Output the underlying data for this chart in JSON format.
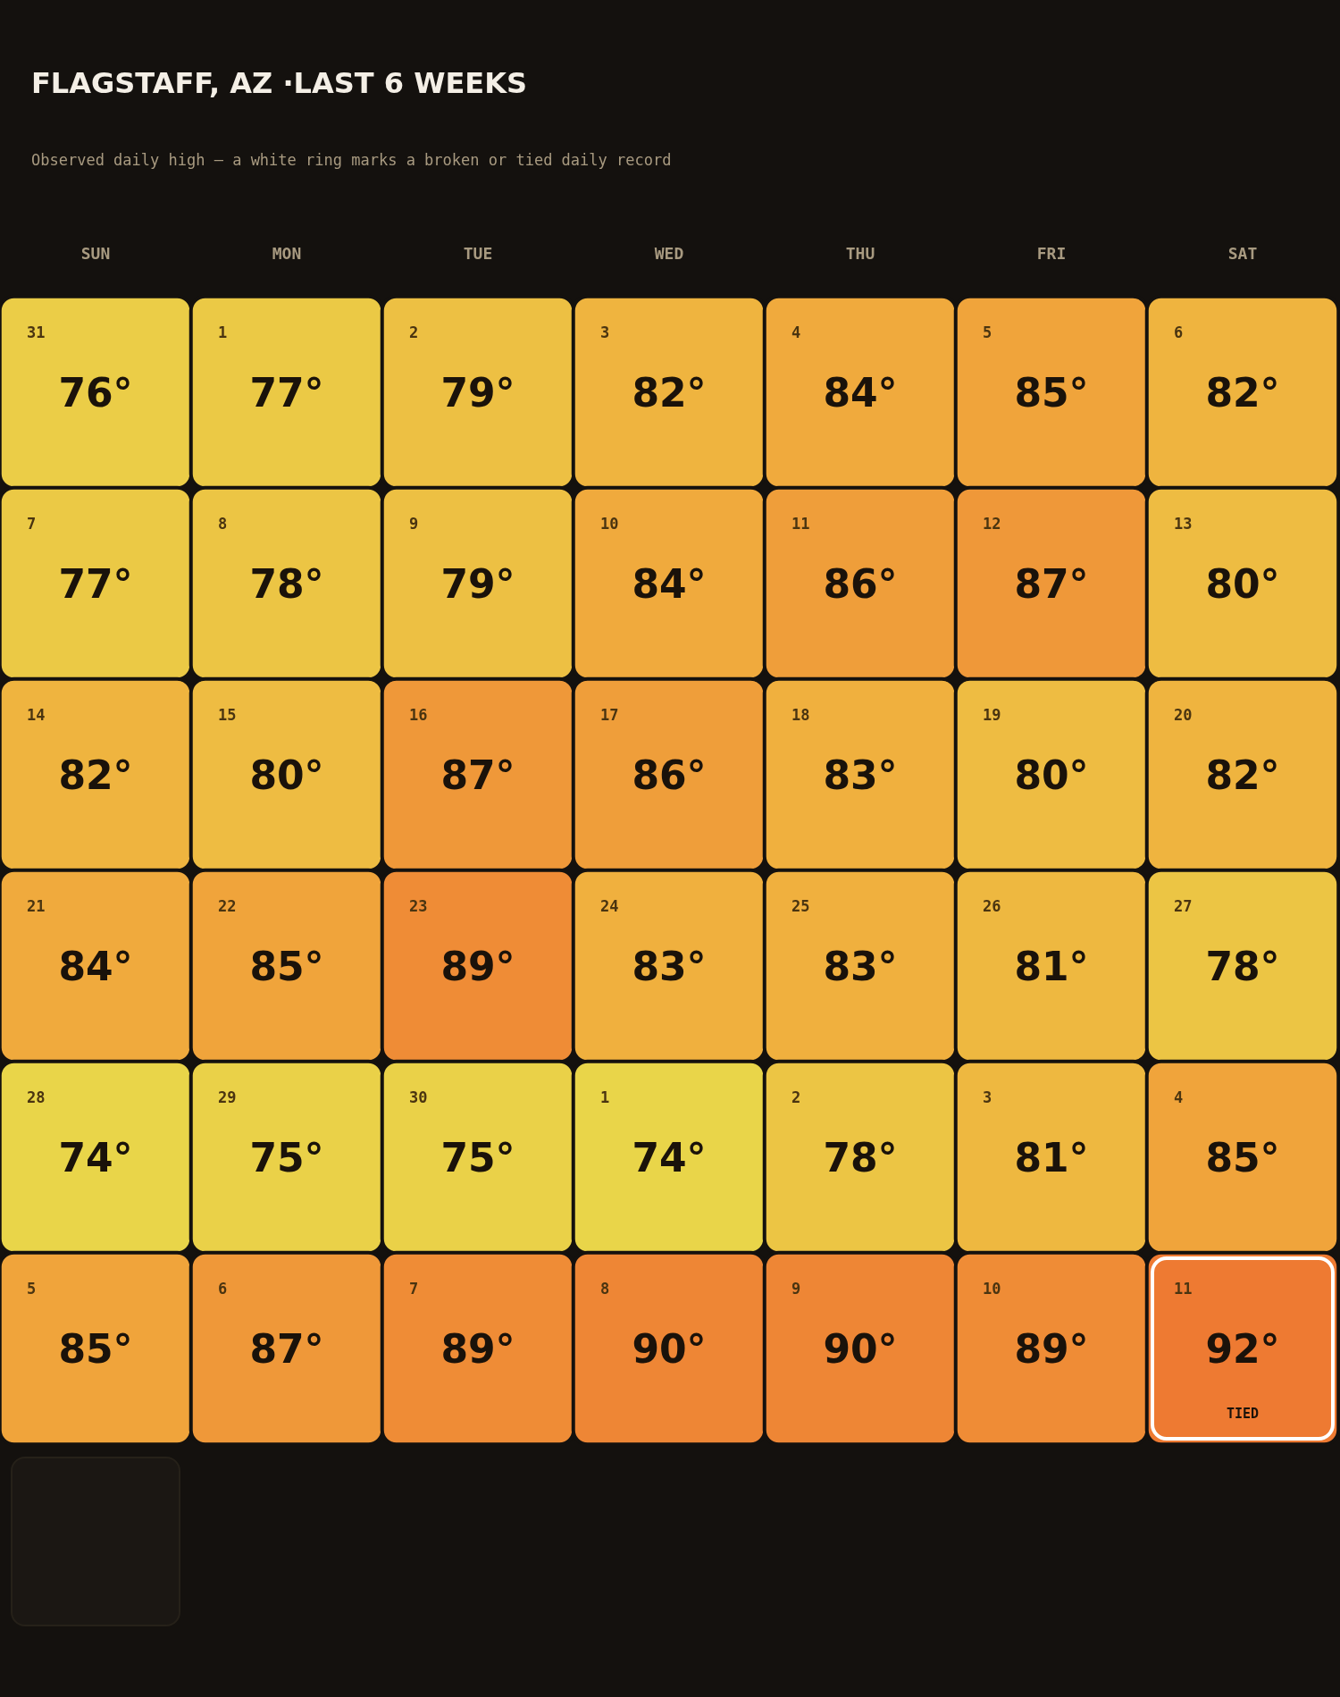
{
  "chart_data": {
    "type": "heatmap",
    "title": "FLAGSTAFF, AZ ·LAST 6 WEEKS",
    "subtitle": "Observed daily high — a white ring marks a broken or tied daily record",
    "categories": [
      "SUN",
      "MON",
      "TUE",
      "WED",
      "THU",
      "FRI",
      "SAT"
    ],
    "y_categories": [
      null,
      null,
      null,
      null,
      null,
      null
    ],
    "cells": [
      [
        76,
        77,
        79,
        82,
        84,
        85,
        82
      ],
      [
        77,
        78,
        79,
        84,
        86,
        87,
        80
      ],
      [
        82,
        80,
        87,
        86,
        83,
        80,
        82
      ],
      [
        84,
        85,
        89,
        83,
        83,
        81,
        78
      ],
      [
        74,
        75,
        75,
        74,
        78,
        81,
        85
      ],
      [
        85,
        87,
        89,
        90,
        90,
        89,
        92
      ]
    ],
    "cell_labels": [
      [
        "76°",
        "77°",
        "79°",
        "82°",
        "84°",
        "85°",
        "82°"
      ],
      [
        "77°",
        "78°",
        "79°",
        "84°",
        "86°",
        "87°",
        "80°"
      ],
      [
        "82°",
        "80°",
        "87°",
        "86°",
        "83°",
        "80°",
        "82°"
      ],
      [
        "84°",
        "85°",
        "89°",
        "83°",
        "83°",
        "81°",
        "78°"
      ],
      [
        "74°",
        "75°",
        "75°",
        "74°",
        "78°",
        "81°",
        "85°"
      ],
      [
        "85°",
        "87°",
        "89°",
        "90°",
        "90°",
        "89°",
        "92°\nTIED"
      ]
    ],
    "annotations": [
      "31",
      "1",
      "2",
      "3",
      "4",
      "5",
      "6",
      "7",
      "8",
      "9",
      "10",
      "11",
      "12",
      "13",
      "14",
      "15",
      "16",
      "17",
      "18",
      "19",
      "20",
      "21",
      "22",
      "23",
      "24",
      "25",
      "26",
      "27",
      "28",
      "29",
      "30",
      "1",
      "2",
      "3",
      "4",
      "5",
      "6",
      "7",
      "8",
      "9",
      "10",
      "11"
    ],
    "colors": [
      "#e9d549",
      "#f0b03e",
      "#ee7a32"
    ],
    "tick_labels": "x"
  }
}
